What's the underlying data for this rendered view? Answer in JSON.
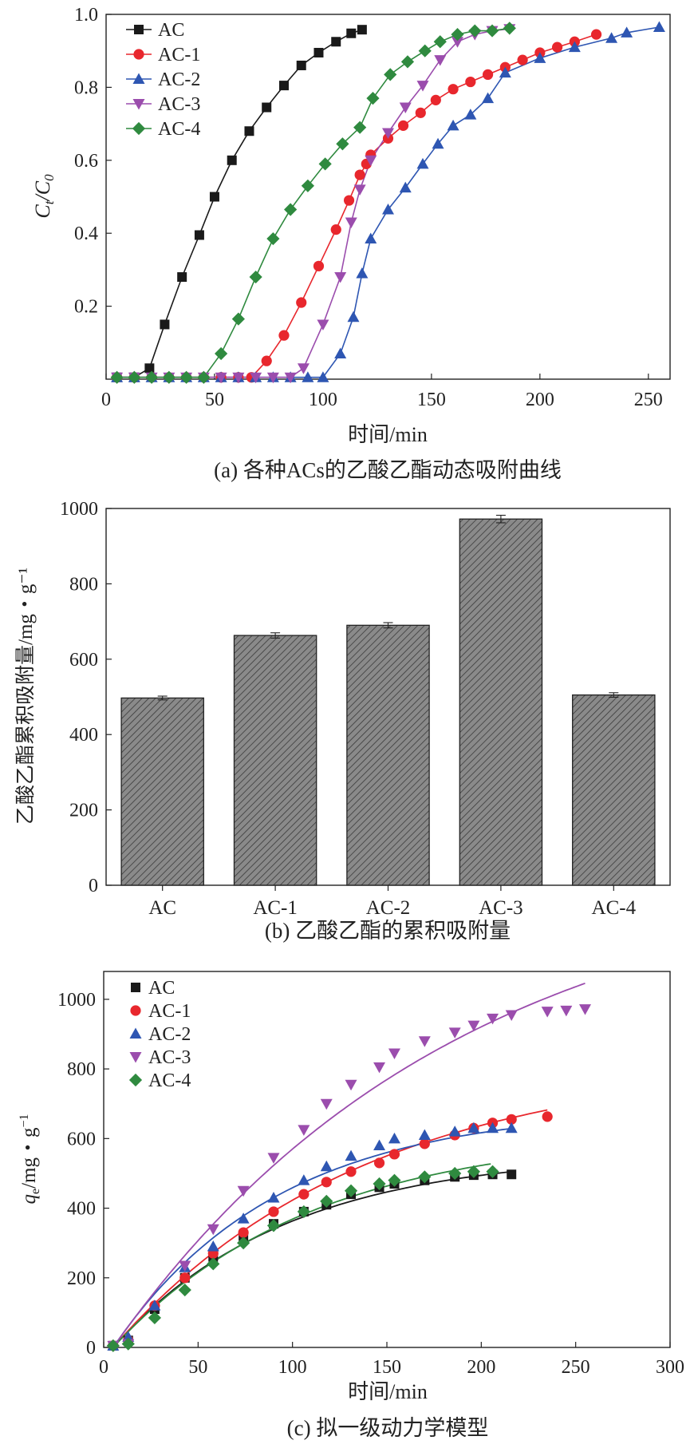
{
  "chart_data": [
    {
      "type": "line",
      "caption": "(a) 各种ACs的乙酸乙酯动态吸附曲线",
      "xlabel": "时间/min",
      "ylabel": "Ct/C0",
      "xlim": [
        0,
        260
      ],
      "ylim": [
        0,
        1.0
      ],
      "xticks": [
        "0",
        "50",
        "100",
        "150",
        "200",
        "250"
      ],
      "yticks": [
        "0.2",
        "0.4",
        "0.6",
        "0.8",
        "1.0"
      ],
      "series": [
        {
          "name": "AC",
          "color": "#1a1a1a",
          "marker": "square",
          "x": [
            5,
            13,
            20,
            27,
            35,
            43,
            50,
            58,
            66,
            74,
            82,
            90,
            98,
            106,
            113,
            118
          ],
          "y": [
            0.005,
            0.005,
            0.03,
            0.15,
            0.28,
            0.395,
            0.5,
            0.6,
            0.68,
            0.745,
            0.805,
            0.86,
            0.895,
            0.925,
            0.948,
            0.958
          ]
        },
        {
          "name": "AC-1",
          "color": "#e8272d",
          "marker": "circle",
          "x": [
            5,
            13,
            21,
            29,
            37,
            45,
            53,
            61,
            67,
            74,
            82,
            90,
            98,
            106,
            112,
            117,
            120,
            122,
            130,
            137,
            145,
            152,
            160,
            168,
            176,
            184,
            192,
            200,
            208,
            216,
            226
          ],
          "y": [
            0.005,
            0.005,
            0.005,
            0.005,
            0.005,
            0.005,
            0.005,
            0.005,
            0.005,
            0.05,
            0.12,
            0.21,
            0.31,
            0.41,
            0.49,
            0.56,
            0.59,
            0.615,
            0.66,
            0.695,
            0.73,
            0.765,
            0.795,
            0.815,
            0.835,
            0.855,
            0.875,
            0.895,
            0.91,
            0.925,
            0.945
          ]
        },
        {
          "name": "AC-2",
          "color": "#2e56b2",
          "marker": "triangle-up",
          "x": [
            5,
            13,
            21,
            29,
            37,
            45,
            53,
            61,
            69,
            77,
            85,
            93,
            100,
            108,
            114,
            118,
            122,
            130,
            138,
            146,
            153,
            160,
            168,
            176,
            184,
            200,
            216,
            233,
            240,
            255
          ],
          "y": [
            0.005,
            0.005,
            0.005,
            0.005,
            0.005,
            0.005,
            0.005,
            0.005,
            0.005,
            0.005,
            0.005,
            0.005,
            0.005,
            0.07,
            0.17,
            0.29,
            0.385,
            0.465,
            0.525,
            0.59,
            0.645,
            0.695,
            0.725,
            0.77,
            0.84,
            0.88,
            0.91,
            0.935,
            0.95,
            0.965
          ]
        },
        {
          "name": "AC-3",
          "color": "#9b4dad",
          "marker": "triangle-down",
          "x": [
            5,
            13,
            21,
            29,
            37,
            45,
            53,
            61,
            69,
            77,
            85,
            91,
            100,
            108,
            113,
            117,
            122,
            130,
            138,
            146,
            154,
            162,
            170,
            178,
            186
          ],
          "y": [
            0.005,
            0.005,
            0.005,
            0.005,
            0.005,
            0.005,
            0.005,
            0.005,
            0.005,
            0.005,
            0.005,
            0.03,
            0.15,
            0.28,
            0.43,
            0.52,
            0.6,
            0.675,
            0.745,
            0.805,
            0.875,
            0.925,
            0.945,
            0.955,
            0.96
          ]
        },
        {
          "name": "AC-4",
          "color": "#2f8a3f",
          "marker": "diamond",
          "x": [
            5,
            13,
            21,
            29,
            37,
            45,
            53,
            61,
            69,
            77,
            85,
            93,
            101,
            109,
            117,
            123,
            131,
            139,
            147,
            154,
            162,
            170,
            178,
            186
          ],
          "y": [
            0.005,
            0.005,
            0.005,
            0.005,
            0.005,
            0.005,
            0.07,
            0.165,
            0.28,
            0.385,
            0.465,
            0.53,
            0.59,
            0.645,
            0.69,
            0.77,
            0.835,
            0.87,
            0.9,
            0.925,
            0.945,
            0.955,
            0.955,
            0.962
          ]
        }
      ]
    },
    {
      "type": "bar",
      "caption": "(b) 乙酸乙酯的累积吸附量",
      "xlabel": "",
      "ylabel": "乙酸乙酯累积吸附量/mg・g⁻¹",
      "ylim": [
        0,
        1000
      ],
      "yticks": [
        "0",
        "200",
        "400",
        "600",
        "800",
        "1000"
      ],
      "categories": [
        "AC",
        "AC-1",
        "AC-2",
        "AC-3",
        "AC-4"
      ],
      "values": [
        497,
        663,
        690,
        972,
        505
      ],
      "errors": [
        5,
        7,
        7,
        10,
        6
      ]
    },
    {
      "type": "scatter",
      "caption": "(c) 拟一级动力学模型",
      "xlabel": "时间/min",
      "ylabel": "qe/mg・g⁻¹",
      "xlim": [
        0,
        300
      ],
      "ylim": [
        0,
        1080
      ],
      "xticks": [
        "0",
        "50",
        "100",
        "150",
        "200",
        "250",
        "300"
      ],
      "yticks": [
        "0",
        "200",
        "400",
        "600",
        "800",
        "1000"
      ],
      "series": [
        {
          "name": "AC",
          "color": "#1a1a1a",
          "marker": "square",
          "x": [
            5,
            13,
            27,
            43,
            58,
            74,
            90,
            106,
            118,
            131,
            146,
            154,
            170,
            186,
            196,
            206,
            216
          ],
          "y": [
            5,
            20,
            110,
            200,
            260,
            320,
            355,
            390,
            410,
            440,
            460,
            470,
            480,
            490,
            495,
            497,
            497
          ],
          "fit": {
            "qmax": 560,
            "k": 0.011,
            "xmax": 216
          }
        },
        {
          "name": "AC-1",
          "color": "#e8272d",
          "marker": "circle",
          "x": [
            5,
            13,
            27,
            43,
            58,
            74,
            90,
            106,
            118,
            131,
            146,
            154,
            170,
            186,
            196,
            206,
            216,
            235
          ],
          "y": [
            5,
            20,
            120,
            200,
            270,
            330,
            390,
            440,
            475,
            505,
            530,
            555,
            585,
            610,
            630,
            645,
            655,
            663
          ],
          "fit": {
            "qmax": 830,
            "k": 0.0075,
            "xmax": 235
          }
        },
        {
          "name": "AC-2",
          "color": "#2e56b2",
          "marker": "triangle-up",
          "x": [
            5,
            13,
            27,
            43,
            58,
            74,
            90,
            106,
            118,
            131,
            146,
            154,
            170,
            186,
            196,
            206,
            216
          ],
          "y": [
            5,
            30,
            120,
            230,
            290,
            370,
            430,
            480,
            520,
            550,
            580,
            600,
            610,
            620,
            630,
            630,
            630
          ],
          "fit": {
            "qmax": 690,
            "k": 0.0115,
            "xmax": 216
          }
        },
        {
          "name": "AC-3",
          "color": "#9b4dad",
          "marker": "triangle-down",
          "x": [
            5,
            13,
            43,
            58,
            74,
            90,
            106,
            118,
            131,
            146,
            154,
            170,
            186,
            196,
            206,
            216,
            235,
            245,
            255
          ],
          "y": [
            5,
            10,
            235,
            340,
            450,
            545,
            625,
            700,
            755,
            805,
            845,
            880,
            905,
            925,
            945,
            955,
            965,
            968,
            972
          ],
          "fit": {
            "qmax": 1400,
            "k": 0.0055,
            "xmax": 255
          }
        },
        {
          "name": "AC-4",
          "color": "#2f8a3f",
          "marker": "diamond",
          "x": [
            5,
            13,
            27,
            43,
            58,
            74,
            90,
            106,
            118,
            131,
            146,
            154,
            170,
            186,
            196,
            206
          ],
          "y": [
            5,
            10,
            85,
            165,
            240,
            300,
            350,
            390,
            420,
            450,
            470,
            480,
            490,
            500,
            505,
            505
          ],
          "fit": {
            "qmax": 620,
            "k": 0.0095,
            "xmax": 206
          }
        }
      ]
    }
  ]
}
